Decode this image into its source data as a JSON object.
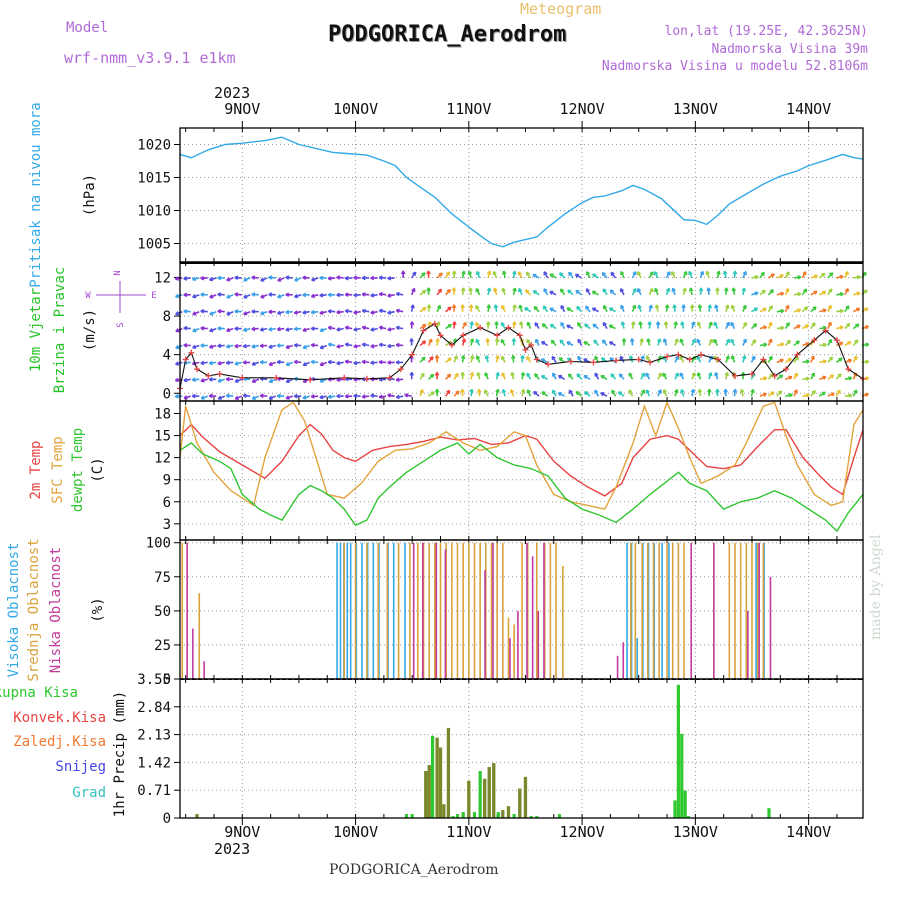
{
  "header": {
    "model_label": "Model",
    "model_name": "wrf-nmm_v3.9.1 e1km",
    "meteogram_label": "Meteogram",
    "station": "PODGORICA_Aerodrom",
    "lonlat": "lon,lat (19.25E, 42.3625N)",
    "elevation": "Nadmorska Visina 39m",
    "model_elevation": "Nadmorska Visina u modelu 52.8106m",
    "year_top": "2023",
    "year_bottom": "2023",
    "footer": "PODGORICA_Aerodrom",
    "watermark": "made by Angel"
  },
  "colors": {
    "pressure": "#33a9e8",
    "wind_label": "#27c227",
    "temp2m": "#e74343",
    "sfc": "#e3a33c",
    "dewpt": "#31c631",
    "high_cloud": "#33a9e8",
    "mid_cloud": "#d9a23b",
    "low_cloud": "#c23a9d",
    "total_precip": "#2fc82f",
    "convective": "#e74343",
    "frozen": "#f07a33",
    "snow": "#4646e6",
    "hail": "#35c2bf",
    "header_purple": "#b06ad6",
    "meteogram_orange": "#e9c06a"
  },
  "chart_data": [
    {
      "type": "line",
      "title": "",
      "ylabel": "Pritisak na nivou mora",
      "unit": "(hPa)",
      "x_ticks": [
        "9NOV",
        "10NOV",
        "11NOV",
        "12NOV",
        "13NOV",
        "14NOV"
      ],
      "x_day_start": 8.5,
      "x_range": [
        8.45,
        14.48
      ],
      "ylim": [
        1002.2,
        1022.5
      ],
      "yticks": [
        1005,
        1010,
        1015,
        1020
      ],
      "grid": true,
      "series": [
        {
          "x": [
            8.45,
            8.55,
            8.7,
            8.85,
            9.0,
            9.2,
            9.35,
            9.5,
            9.65,
            9.8,
            9.95,
            10.1,
            10.25,
            10.35,
            10.45,
            10.55,
            10.7,
            10.85,
            11.0,
            11.1,
            11.2,
            11.3,
            11.4,
            11.5,
            11.6,
            11.7,
            11.85,
            12.0,
            12.1,
            12.2,
            12.35,
            12.45,
            12.55,
            12.7,
            12.8,
            12.9,
            13.0,
            13.1,
            13.2,
            13.3,
            13.45,
            13.6,
            13.75,
            13.9,
            14.0,
            14.15,
            14.3,
            14.4,
            14.48
          ],
          "values": [
            1018.5,
            1018.0,
            1019.2,
            1020.0,
            1020.2,
            1020.6,
            1021.1,
            1020.0,
            1019.4,
            1018.8,
            1018.6,
            1018.4,
            1017.5,
            1016.8,
            1015.0,
            1013.8,
            1012.0,
            1009.5,
            1007.5,
            1006.2,
            1005.0,
            1004.5,
            1005.2,
            1005.6,
            1006.0,
            1007.5,
            1009.5,
            1011.2,
            1012.0,
            1012.2,
            1013.0,
            1013.8,
            1013.2,
            1011.8,
            1010.2,
            1008.6,
            1008.5,
            1007.9,
            1009.3,
            1011.0,
            1012.5,
            1014.0,
            1015.2,
            1016.0,
            1016.8,
            1017.6,
            1018.5,
            1018.0,
            1017.8
          ]
        }
      ]
    },
    {
      "type": "line",
      "title": "",
      "ylabel": "10m Vjetar Brzina i Pravac",
      "ylabel_lines": [
        "10m Vjetar",
        "Brzina i Pravac"
      ],
      "unit": "(m/s)",
      "compass": {
        "n": "N",
        "s": "S",
        "w": "W",
        "e": "E"
      },
      "x_range": [
        8.45,
        14.48
      ],
      "ylim": [
        -0.8,
        13.6
      ],
      "yticks": [
        0,
        4,
        8,
        12
      ],
      "grid": true,
      "series": [
        {
          "name": "speed",
          "x": [
            8.45,
            8.5,
            8.55,
            8.6,
            8.7,
            8.8,
            9.0,
            9.3,
            9.6,
            9.9,
            10.1,
            10.3,
            10.4,
            10.5,
            10.6,
            10.7,
            10.75,
            10.85,
            10.95,
            11.1,
            11.25,
            11.35,
            11.45,
            11.5,
            11.55,
            11.6,
            11.7,
            11.9,
            12.1,
            12.3,
            12.5,
            12.6,
            12.75,
            12.85,
            12.95,
            13.05,
            13.2,
            13.35,
            13.5,
            13.6,
            13.7,
            13.8,
            13.9,
            14.05,
            14.15,
            14.25,
            14.35,
            14.48
          ],
          "values": [
            0.5,
            3.5,
            4.2,
            2.5,
            1.8,
            2.0,
            1.6,
            1.6,
            1.4,
            1.6,
            1.5,
            1.6,
            2.5,
            4.0,
            6.5,
            7.2,
            6.0,
            5.0,
            6.0,
            6.8,
            6.0,
            6.8,
            6.0,
            4.5,
            5.0,
            3.5,
            3.0,
            3.3,
            3.2,
            3.4,
            3.5,
            3.2,
            3.8,
            4.0,
            3.5,
            4.0,
            3.5,
            1.8,
            2.0,
            3.5,
            1.8,
            2.5,
            4.0,
            5.5,
            6.5,
            5.5,
            2.5,
            1.5
          ]
        }
      ]
    },
    {
      "type": "line",
      "title": "",
      "ylabel_lines": [
        "2m Temp",
        "SFC Temp",
        "dewpt Temp"
      ],
      "unit": "(C)",
      "x_range": [
        8.45,
        14.48
      ],
      "ylim": [
        0.8,
        19.7
      ],
      "yticks": [
        3,
        6,
        9,
        12,
        15,
        18
      ],
      "grid": true,
      "series": [
        {
          "name": "2m Temp",
          "x": [
            8.45,
            8.55,
            8.65,
            8.8,
            9.0,
            9.2,
            9.35,
            9.5,
            9.6,
            9.7,
            9.8,
            9.9,
            10.0,
            10.15,
            10.3,
            10.45,
            10.6,
            10.75,
            10.9,
            11.05,
            11.2,
            11.35,
            11.5,
            11.6,
            11.75,
            11.9,
            12.05,
            12.2,
            12.35,
            12.45,
            12.6,
            12.75,
            12.85,
            12.95,
            13.1,
            13.25,
            13.4,
            13.55,
            13.7,
            13.8,
            13.95,
            14.1,
            14.2,
            14.3,
            14.4,
            14.48
          ],
          "values": [
            15.0,
            16.5,
            14.8,
            12.8,
            11.0,
            9.2,
            11.5,
            15.0,
            16.5,
            15.2,
            13.0,
            12.0,
            11.5,
            13.0,
            13.5,
            13.8,
            14.2,
            14.8,
            14.4,
            14.6,
            13.8,
            14.0,
            15.0,
            14.5,
            11.5,
            9.5,
            8.0,
            6.8,
            8.5,
            12.0,
            14.5,
            15.0,
            14.5,
            13.0,
            10.8,
            10.5,
            11.0,
            13.5,
            15.8,
            15.8,
            12.0,
            9.5,
            8.0,
            7.0,
            12.0,
            15.8
          ]
        },
        {
          "name": "SFC Temp",
          "x": [
            8.45,
            8.5,
            8.6,
            8.75,
            8.9,
            9.1,
            9.2,
            9.35,
            9.45,
            9.55,
            9.65,
            9.75,
            9.9,
            10.05,
            10.2,
            10.35,
            10.5,
            10.65,
            10.8,
            10.95,
            11.1,
            11.25,
            11.4,
            11.5,
            11.6,
            11.75,
            11.9,
            12.05,
            12.2,
            12.3,
            12.45,
            12.55,
            12.65,
            12.75,
            12.85,
            12.95,
            13.05,
            13.2,
            13.35,
            13.45,
            13.6,
            13.7,
            13.8,
            13.9,
            14.05,
            14.2,
            14.3,
            14.4,
            14.48
          ],
          "values": [
            12.0,
            19.0,
            14.0,
            10.0,
            7.5,
            5.5,
            12.0,
            18.5,
            19.5,
            17.0,
            12.0,
            7.0,
            6.5,
            8.5,
            11.5,
            13.0,
            13.2,
            14.0,
            15.5,
            14.0,
            13.0,
            13.5,
            15.5,
            15.0,
            11.0,
            7.0,
            6.0,
            5.5,
            5.0,
            8.0,
            14.0,
            19.0,
            15.0,
            19.5,
            16.0,
            12.0,
            8.5,
            9.5,
            11.0,
            14.0,
            19.0,
            19.5,
            15.0,
            11.0,
            7.0,
            5.5,
            6.0,
            16.5,
            18.5
          ]
        },
        {
          "name": "dewpt Temp",
          "x": [
            8.45,
            8.55,
            8.65,
            8.8,
            8.9,
            9.0,
            9.15,
            9.25,
            9.35,
            9.5,
            9.6,
            9.7,
            9.8,
            9.9,
            10.0,
            10.1,
            10.2,
            10.3,
            10.45,
            10.6,
            10.75,
            10.9,
            11.0,
            11.1,
            11.25,
            11.4,
            11.55,
            11.7,
            11.85,
            12.0,
            12.15,
            12.3,
            12.45,
            12.6,
            12.75,
            12.85,
            12.95,
            13.1,
            13.25,
            13.4,
            13.55,
            13.7,
            13.85,
            14.0,
            14.15,
            14.25,
            14.35,
            14.48
          ],
          "values": [
            13.0,
            14.0,
            12.5,
            11.5,
            10.5,
            7.0,
            5.0,
            4.2,
            3.5,
            7.0,
            8.2,
            7.5,
            6.5,
            5.0,
            2.8,
            3.5,
            6.5,
            8.0,
            10.0,
            11.5,
            13.0,
            14.0,
            12.5,
            13.8,
            12.0,
            11.0,
            10.5,
            9.5,
            6.5,
            5.0,
            4.2,
            3.2,
            5.0,
            7.0,
            8.8,
            10.0,
            8.5,
            7.5,
            5.0,
            6.0,
            6.5,
            7.5,
            6.5,
            5.0,
            3.5,
            2.0,
            4.5,
            7.0
          ]
        }
      ]
    },
    {
      "type": "bar",
      "title": "",
      "ylabel_lines": [
        "Visoka Oblacnost",
        "Srednja Oblacnost",
        "Niska Oblacnost"
      ],
      "unit": "(%)",
      "x_range": [
        8.45,
        14.48
      ],
      "ylim": [
        0,
        102
      ],
      "yticks": [
        0,
        25,
        50,
        75,
        100
      ],
      "grid": true,
      "series": [
        {
          "name": "Visoka Oblacnost",
          "x": [
            9.85,
            9.88,
            9.91,
            9.94,
            9.97,
            10.02,
            10.07,
            10.12,
            10.17,
            10.22,
            10.3,
            10.35,
            10.45,
            12.41,
            12.45,
            12.5,
            12.55,
            12.6,
            12.65,
            12.72,
            12.78,
            13.55,
            13.62
          ],
          "values": [
            100,
            100,
            100,
            100,
            100,
            100,
            100,
            100,
            100,
            100,
            100,
            100,
            100,
            100,
            100,
            30,
            100,
            100,
            100,
            100,
            100,
            100,
            100
          ]
        },
        {
          "name": "Srednja Oblacnost",
          "x": [
            8.47,
            8.62,
            9.9,
            10.0,
            10.1,
            10.2,
            10.28,
            10.38,
            10.48,
            10.55,
            10.6,
            10.65,
            10.7,
            10.75,
            10.8,
            10.85,
            10.9,
            10.95,
            11.0,
            11.05,
            11.1,
            11.15,
            11.2,
            11.25,
            11.3,
            11.35,
            11.4,
            11.47,
            11.52,
            11.6,
            11.67,
            11.72,
            11.77,
            11.83,
            12.43,
            12.47,
            12.53,
            12.58,
            12.63,
            12.68,
            12.75,
            12.8,
            12.85,
            12.9,
            13.3,
            13.35,
            13.4,
            13.45,
            13.5,
            13.55,
            13.6
          ],
          "values": [
            100,
            63,
            100,
            100,
            100,
            100,
            100,
            100,
            100,
            100,
            100,
            100,
            100,
            100,
            100,
            100,
            100,
            100,
            100,
            100,
            100,
            100,
            100,
            100,
            100,
            45,
            40,
            100,
            100,
            100,
            100,
            100,
            100,
            83,
            100,
            100,
            100,
            100,
            100,
            100,
            100,
            100,
            100,
            100,
            100,
            100,
            100,
            100,
            100,
            100,
            100
          ]
        },
        {
          "name": "Niska Oblacnost",
          "x": [
            8.5,
            8.55,
            8.65,
            10.5,
            10.58,
            10.7,
            10.78,
            11.13,
            11.2,
            11.35,
            11.42,
            11.5,
            11.55,
            11.6,
            11.65,
            12.3,
            12.35,
            12.95,
            13.15,
            13.45,
            13.55,
            13.65
          ],
          "values": [
            100,
            37,
            13,
            100,
            100,
            100,
            95,
            80,
            100,
            30,
            50,
            100,
            90,
            50,
            100,
            17,
            27,
            100,
            100,
            50,
            100,
            75
          ]
        }
      ]
    },
    {
      "type": "bar",
      "title": "",
      "ylabel": "1hr Precip",
      "unit": "(mm)",
      "legend": [
        "Ukupna Kisa",
        "Konvek.Kisa",
        "Zaledj.Kisa",
        "Snijeg",
        "Grad"
      ],
      "x_ticks_bottom": [
        "9NOV",
        "10NOV",
        "11NOV",
        "12NOV",
        "13NOV",
        "14NOV"
      ],
      "x_range": [
        8.45,
        14.48
      ],
      "ylim": [
        0,
        3.55
      ],
      "yticks": [
        0,
        0.71,
        1.42,
        2.13,
        2.84,
        3.55
      ],
      "ytick_labels": [
        "0",
        "0.71",
        "1.42",
        "2.13",
        "2.84",
        "3.55"
      ],
      "grid": true,
      "series": [
        {
          "name": "Ukupna Kisa",
          "x": [
            8.6,
            10.45,
            10.5,
            10.62,
            10.65,
            10.68,
            10.72,
            10.75,
            10.78,
            10.82,
            10.86,
            10.9,
            10.95,
            11.0,
            11.05,
            11.1,
            11.14,
            11.18,
            11.22,
            11.26,
            11.3,
            11.35,
            11.4,
            11.45,
            11.5,
            11.55,
            11.6,
            11.8,
            12.82,
            12.85,
            12.88,
            12.91,
            12.94,
            13.65
          ],
          "values": [
            0.1,
            0.1,
            0.1,
            1.2,
            1.35,
            2.1,
            2.05,
            1.8,
            0.35,
            2.3,
            0.05,
            0.1,
            0.15,
            0.95,
            0.15,
            1.2,
            1.0,
            1.3,
            1.4,
            0.15,
            0.2,
            0.3,
            0.1,
            0.75,
            1.05,
            0.05,
            0.05,
            0.1,
            0.45,
            3.4,
            2.15,
            0.7,
            0.05,
            0.25
          ]
        },
        {
          "name": "Konvek.Kisa",
          "x": [
            8.6,
            10.62,
            10.65,
            10.72,
            10.75,
            10.78,
            10.82,
            11.0,
            11.14,
            11.18,
            11.22,
            11.3,
            11.35,
            11.45,
            11.5
          ],
          "values": [
            0.1,
            1.2,
            1.35,
            2.05,
            1.8,
            0.35,
            2.3,
            0.95,
            1.0,
            1.3,
            1.4,
            0.2,
            0.3,
            0.75,
            1.05
          ]
        }
      ]
    }
  ]
}
